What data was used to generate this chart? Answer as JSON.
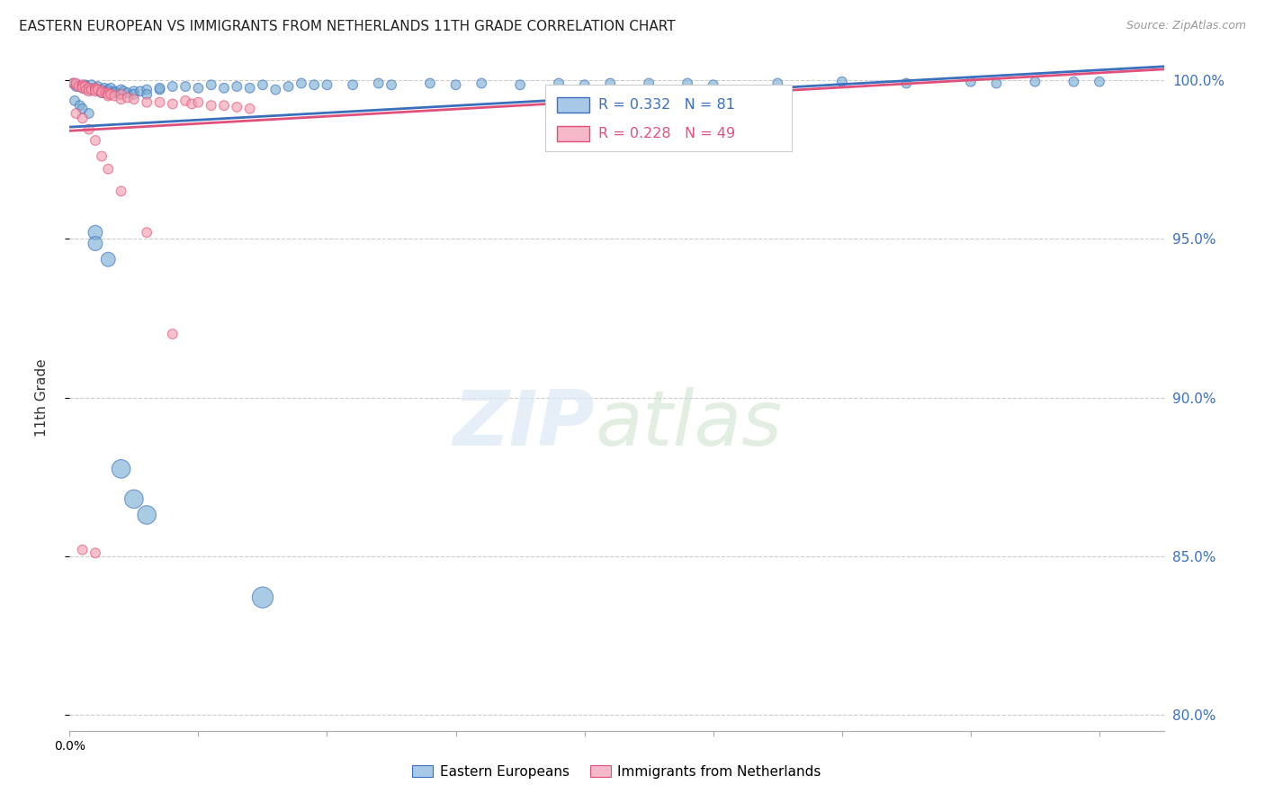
{
  "title": "EASTERN EUROPEAN VS IMMIGRANTS FROM NETHERLANDS 11TH GRADE CORRELATION CHART",
  "source": "Source: ZipAtlas.com",
  "ylabel": "11th Grade",
  "xmin": 0.0,
  "xmax": 0.085,
  "ymin": 0.795,
  "ymax": 1.005,
  "yticks": [
    0.8,
    0.85,
    0.9,
    0.95,
    1.0
  ],
  "xtick_positions": [
    0.0,
    0.01,
    0.02,
    0.03,
    0.04,
    0.05,
    0.06,
    0.07,
    0.08
  ],
  "background_color": "#ffffff",
  "blue_color": "#7bafd4",
  "pink_color": "#f4a0b0",
  "blue_line_color": "#3a6fbd",
  "pink_line_color": "#e0507a",
  "legend_blue_fill": "#a8c8e8",
  "legend_pink_fill": "#f4b8c8",
  "R_blue": 0.332,
  "N_blue": 81,
  "R_pink": 0.228,
  "N_pink": 49,
  "blue_scatter_x": [
    0.0003,
    0.0005,
    0.0006,
    0.0008,
    0.001,
    0.001,
    0.0012,
    0.0013,
    0.0015,
    0.0015,
    0.0017,
    0.0018,
    0.002,
    0.002,
    0.0022,
    0.0023,
    0.0025,
    0.0025,
    0.0027,
    0.003,
    0.003,
    0.003,
    0.0032,
    0.0035,
    0.0035,
    0.004,
    0.004,
    0.0042,
    0.0045,
    0.005,
    0.005,
    0.0055,
    0.006,
    0.006,
    0.007,
    0.007,
    0.008,
    0.009,
    0.01,
    0.011,
    0.012,
    0.013,
    0.014,
    0.015,
    0.016,
    0.017,
    0.018,
    0.019,
    0.02,
    0.022,
    0.024,
    0.025,
    0.028,
    0.03,
    0.032,
    0.035,
    0.038,
    0.04,
    0.042,
    0.045,
    0.048,
    0.05,
    0.055,
    0.06,
    0.065,
    0.07,
    0.072,
    0.075,
    0.078,
    0.08,
    0.0004,
    0.0008,
    0.001,
    0.0015,
    0.002,
    0.002,
    0.003,
    0.004,
    0.005,
    0.006,
    0.015
  ],
  "blue_scatter_y": [
    0.999,
    0.998,
    0.9985,
    0.998,
    0.998,
    0.9975,
    0.9985,
    0.998,
    0.9975,
    0.997,
    0.9985,
    0.997,
    0.9975,
    0.997,
    0.998,
    0.9965,
    0.997,
    0.996,
    0.9975,
    0.997,
    0.9965,
    0.996,
    0.9975,
    0.9965,
    0.996,
    0.997,
    0.9955,
    0.9965,
    0.996,
    0.9965,
    0.9955,
    0.9965,
    0.997,
    0.9955,
    0.997,
    0.9975,
    0.998,
    0.998,
    0.9975,
    0.9985,
    0.9975,
    0.998,
    0.9975,
    0.9985,
    0.997,
    0.998,
    0.999,
    0.9985,
    0.9985,
    0.9985,
    0.999,
    0.9985,
    0.999,
    0.9985,
    0.999,
    0.9985,
    0.999,
    0.9985,
    0.999,
    0.999,
    0.999,
    0.9985,
    0.999,
    0.9995,
    0.999,
    0.9995,
    0.999,
    0.9995,
    0.9995,
    0.9995,
    0.9935,
    0.992,
    0.991,
    0.9895,
    0.952,
    0.9485,
    0.9435,
    0.8775,
    0.868,
    0.863,
    0.837
  ],
  "blue_scatter_sizes": [
    60,
    60,
    60,
    60,
    60,
    60,
    60,
    60,
    60,
    60,
    60,
    60,
    60,
    60,
    60,
    60,
    60,
    60,
    60,
    60,
    60,
    60,
    60,
    60,
    60,
    60,
    60,
    60,
    60,
    60,
    60,
    60,
    60,
    60,
    60,
    60,
    60,
    60,
    60,
    60,
    60,
    60,
    60,
    60,
    60,
    60,
    60,
    60,
    60,
    60,
    60,
    60,
    60,
    60,
    60,
    60,
    60,
    60,
    60,
    60,
    60,
    60,
    60,
    60,
    60,
    60,
    60,
    60,
    60,
    60,
    60,
    60,
    60,
    60,
    130,
    130,
    130,
    220,
    220,
    220,
    280
  ],
  "pink_scatter_x": [
    0.0003,
    0.0005,
    0.0005,
    0.0007,
    0.001,
    0.001,
    0.001,
    0.0012,
    0.0013,
    0.0015,
    0.0015,
    0.0017,
    0.002,
    0.002,
    0.002,
    0.0022,
    0.0025,
    0.0025,
    0.0028,
    0.003,
    0.003,
    0.003,
    0.0032,
    0.0035,
    0.004,
    0.004,
    0.0045,
    0.005,
    0.006,
    0.007,
    0.008,
    0.009,
    0.0095,
    0.01,
    0.011,
    0.012,
    0.013,
    0.014,
    0.0005,
    0.001,
    0.0015,
    0.002,
    0.0025,
    0.003,
    0.004,
    0.006,
    0.008,
    0.001,
    0.002
  ],
  "pink_scatter_y": [
    0.999,
    0.9985,
    0.999,
    0.998,
    0.9985,
    0.998,
    0.9975,
    0.998,
    0.997,
    0.9975,
    0.9965,
    0.997,
    0.9975,
    0.997,
    0.9965,
    0.997,
    0.9965,
    0.996,
    0.996,
    0.996,
    0.9955,
    0.995,
    0.9955,
    0.995,
    0.9955,
    0.994,
    0.9945,
    0.994,
    0.993,
    0.993,
    0.9925,
    0.9935,
    0.9925,
    0.993,
    0.992,
    0.992,
    0.9915,
    0.991,
    0.9895,
    0.988,
    0.9845,
    0.981,
    0.976,
    0.972,
    0.965,
    0.952,
    0.92,
    0.852,
    0.851
  ],
  "pink_scatter_sizes": [
    60,
    60,
    60,
    60,
    60,
    60,
    60,
    60,
    60,
    60,
    60,
    60,
    60,
    60,
    60,
    60,
    60,
    60,
    60,
    60,
    60,
    60,
    60,
    60,
    60,
    60,
    60,
    60,
    60,
    60,
    60,
    60,
    60,
    60,
    60,
    60,
    60,
    60,
    60,
    60,
    60,
    60,
    60,
    60,
    60,
    60,
    60,
    60,
    60
  ],
  "trend_blue_x0": 0.0,
  "trend_blue_x1": 0.085,
  "trend_pink_x0": 0.0,
  "trend_pink_x1": 0.085
}
